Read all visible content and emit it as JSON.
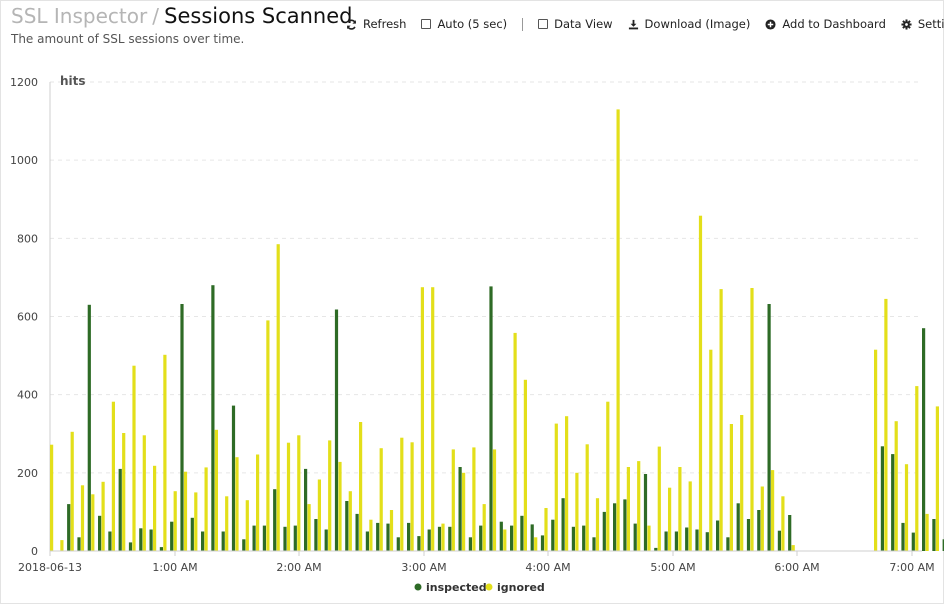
{
  "header": {
    "breadcrumb": "SSL Inspector",
    "separator": "/",
    "title": "Sessions Scanned",
    "subtitle": "The amount of SSL sessions over time."
  },
  "toolbar": {
    "refresh": {
      "label": "Refresh",
      "icon": "refresh-icon"
    },
    "auto": {
      "label": "Auto (5 sec)",
      "icon": "checkbox-icon"
    },
    "data_view": {
      "label": "Data View",
      "icon": "checkbox-icon"
    },
    "download": {
      "label": "Download (Image)",
      "icon": "download-icon"
    },
    "add_dashboard": {
      "label": "Add to Dashboard",
      "icon": "plus-circle-icon"
    },
    "settings": {
      "label": "Settin",
      "icon": "gear-icon"
    }
  },
  "chart_data": {
    "type": "bar",
    "ylabel": "hits",
    "ylim": [
      0,
      1200
    ],
    "yticks": [
      "0",
      "200",
      "400",
      "600",
      "800",
      "1000",
      "1200"
    ],
    "xtick_labels": [
      "2018-06-13",
      "1:00 AM",
      "2:00 AM",
      "3:00 AM",
      "4:00 AM",
      "5:00 AM",
      "6:00 AM",
      "7:00 AM"
    ],
    "grid": true,
    "legend_position": "bottom",
    "series": [
      {
        "name": "inspected",
        "color": "#2e6b26",
        "values": [
          0,
          120,
          35,
          630,
          90,
          50,
          210,
          22,
          58,
          55,
          10,
          75,
          632,
          85,
          50,
          680,
          50,
          372,
          30,
          65,
          65,
          158,
          62,
          65,
          210,
          82,
          55,
          618,
          128,
          95,
          50,
          72,
          70,
          35,
          72,
          38,
          55,
          62,
          62,
          215,
          35,
          65,
          677,
          75,
          65,
          90,
          68,
          40,
          80,
          135,
          62,
          65,
          35,
          100,
          122,
          132,
          70,
          197,
          8,
          50,
          50,
          60,
          55,
          48,
          78,
          35,
          122,
          82,
          105,
          632,
          52,
          92,
          0,
          0,
          0,
          0,
          0,
          0,
          0,
          0,
          268,
          248,
          72,
          47,
          570,
          82,
          30
        ]
      },
      {
        "name": "ignored",
        "color": "#e3df1a",
        "values": [
          272,
          28,
          305,
          168,
          145,
          177,
          382,
          302,
          474,
          296,
          218,
          502,
          153,
          203,
          150,
          214,
          310,
          140,
          240,
          130,
          247,
          590,
          785,
          277,
          296,
          120,
          183,
          283,
          228,
          153,
          330,
          80,
          263,
          105,
          290,
          278,
          675,
          675,
          70,
          260,
          200,
          265,
          120,
          260,
          55,
          558,
          438,
          35,
          110,
          326,
          345,
          200,
          273,
          135,
          382,
          1130,
          215,
          230,
          65,
          267,
          162,
          215,
          178,
          858,
          515,
          670,
          325,
          348,
          673,
          165,
          207,
          140,
          15,
          0,
          0,
          0,
          0,
          0,
          0,
          0,
          515,
          645,
          332,
          222,
          422,
          95,
          370
        ]
      }
    ]
  }
}
